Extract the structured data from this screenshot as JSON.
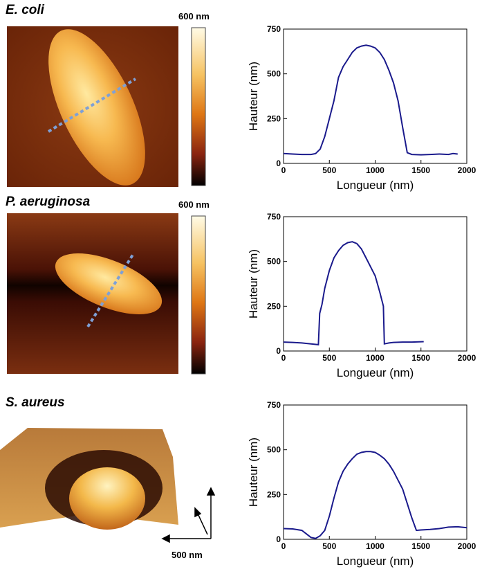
{
  "panels": [
    {
      "label": "E. coli",
      "colorbar": "600 nm"
    },
    {
      "label": "P. aeruginosa",
      "colorbar": "600 nm"
    },
    {
      "label": "S. aureus",
      "scale_bar": "500 nm"
    }
  ],
  "chart_data": [
    {
      "type": "line",
      "x_label": "Longueur (nm)",
      "y_label": "Hauteur (nm)",
      "xlim": [
        0,
        2000
      ],
      "xticks": [
        0,
        500,
        1000,
        1500,
        2000
      ],
      "ylim": [
        0,
        750
      ],
      "yticks": [
        0,
        250,
        500,
        750
      ],
      "series": [
        {
          "color": "#1a1a8c",
          "x": [
            0,
            100,
            200,
            300,
            350,
            400,
            450,
            500,
            550,
            600,
            650,
            700,
            750,
            800,
            850,
            900,
            950,
            1000,
            1050,
            1100,
            1150,
            1200,
            1250,
            1300,
            1350,
            1400,
            1500,
            1600,
            1700,
            1800,
            1850,
            1900
          ],
          "values": [
            55,
            52,
            50,
            50,
            55,
            80,
            150,
            250,
            350,
            480,
            540,
            580,
            620,
            645,
            655,
            660,
            655,
            645,
            620,
            580,
            520,
            450,
            350,
            200,
            60,
            50,
            48,
            50,
            52,
            50,
            55,
            52
          ]
        }
      ]
    },
    {
      "type": "line",
      "x_label": "Longueur (nm)",
      "y_label": "Hauteur (nm)",
      "xlim": [
        0,
        2000
      ],
      "xticks": [
        0,
        500,
        1000,
        1500,
        2000
      ],
      "ylim": [
        0,
        750
      ],
      "yticks": [
        0,
        250,
        500,
        750
      ],
      "series": [
        {
          "color": "#1a1a8c",
          "x": [
            0,
            100,
            200,
            300,
            380,
            395,
            420,
            450,
            500,
            550,
            600,
            650,
            700,
            750,
            800,
            850,
            900,
            950,
            1000,
            1050,
            1090,
            1100,
            1150,
            1200,
            1300,
            1400,
            1530
          ],
          "values": [
            50,
            48,
            45,
            40,
            35,
            210,
            260,
            350,
            450,
            520,
            560,
            590,
            605,
            610,
            600,
            570,
            520,
            470,
            420,
            330,
            250,
            40,
            45,
            48,
            50,
            50,
            52
          ]
        }
      ]
    },
    {
      "type": "line",
      "x_label": "Longueur (nm)",
      "y_label": "Hauteur (nm)",
      "xlim": [
        0,
        2000
      ],
      "xticks": [
        0,
        500,
        1000,
        1500,
        2000
      ],
      "ylim": [
        0,
        750
      ],
      "yticks": [
        0,
        250,
        500,
        750
      ],
      "series": [
        {
          "color": "#1a1a8c",
          "x": [
            0,
            100,
            200,
            250,
            300,
            350,
            400,
            450,
            500,
            550,
            600,
            650,
            700,
            750,
            800,
            850,
            900,
            950,
            1000,
            1050,
            1100,
            1150,
            1200,
            1250,
            1300,
            1350,
            1400,
            1450,
            1500,
            1600,
            1700,
            1800,
            1900,
            2000
          ],
          "values": [
            60,
            58,
            50,
            30,
            10,
            5,
            20,
            50,
            130,
            230,
            320,
            380,
            420,
            450,
            475,
            485,
            490,
            490,
            485,
            470,
            450,
            420,
            380,
            330,
            280,
            200,
            120,
            50,
            52,
            55,
            60,
            68,
            70,
            65
          ]
        }
      ]
    }
  ]
}
